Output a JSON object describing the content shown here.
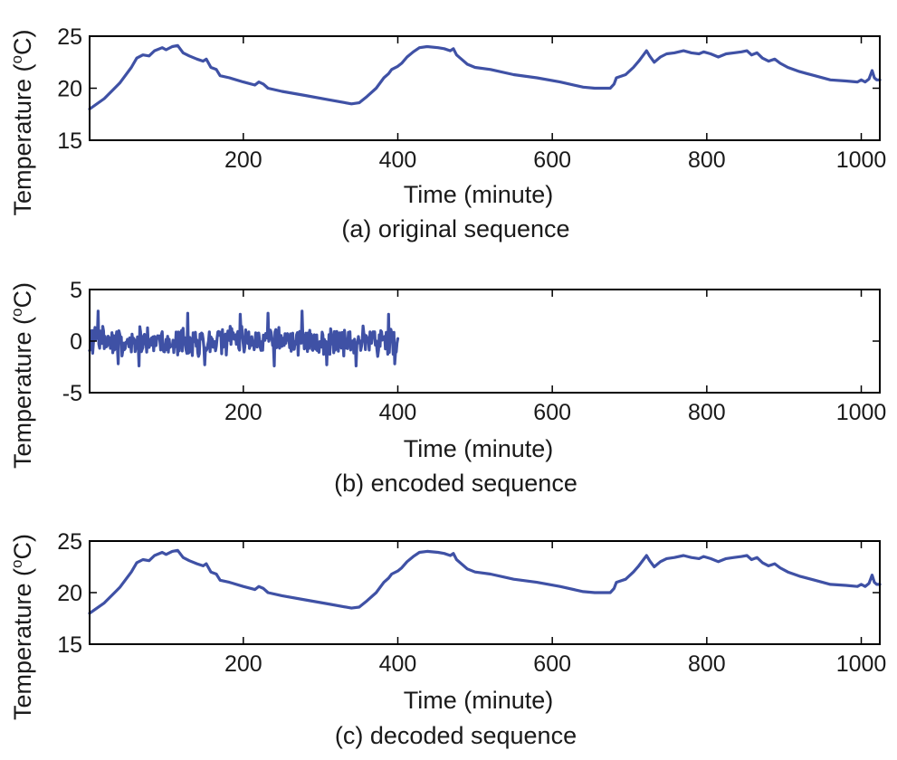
{
  "chart_data": [
    {
      "type": "line",
      "caption": "(a) original sequence",
      "xlabel": "Time (minute)",
      "ylabel": "Temperature (",
      "ylabel_sup": "o",
      "ylabel_unit": "C)",
      "xlim": [
        1,
        1024
      ],
      "ylim": [
        15,
        25
      ],
      "xticks": [
        200,
        400,
        600,
        800,
        1000
      ],
      "xtick_labels": [
        "200",
        "400",
        "600",
        "800",
        "1000"
      ],
      "yticks": [
        15,
        20,
        25
      ],
      "ytick_labels": [
        "15",
        "20",
        "25"
      ],
      "series": [
        {
          "name": "temperature",
          "color": "#3f51a5",
          "points": [
            [
              1,
              18.0
            ],
            [
              20,
              19.0
            ],
            [
              40,
              20.5
            ],
            [
              55,
              22.0
            ],
            [
              62,
              22.9
            ],
            [
              70,
              23.2
            ],
            [
              78,
              23.1
            ],
            [
              85,
              23.6
            ],
            [
              95,
              23.9
            ],
            [
              100,
              23.7
            ],
            [
              108,
              24.0
            ],
            [
              115,
              24.1
            ],
            [
              122,
              23.4
            ],
            [
              130,
              23.1
            ],
            [
              140,
              22.8
            ],
            [
              148,
              22.6
            ],
            [
              152,
              22.8
            ],
            [
              158,
              22.0
            ],
            [
              165,
              21.8
            ],
            [
              170,
              21.2
            ],
            [
              182,
              21.0
            ],
            [
              200,
              20.6
            ],
            [
              215,
              20.3
            ],
            [
              220,
              20.6
            ],
            [
              226,
              20.4
            ],
            [
              232,
              20.0
            ],
            [
              250,
              19.7
            ],
            [
              280,
              19.3
            ],
            [
              310,
              18.9
            ],
            [
              340,
              18.5
            ],
            [
              350,
              18.6
            ],
            [
              360,
              19.2
            ],
            [
              372,
              20.0
            ],
            [
              382,
              21.0
            ],
            [
              388,
              21.4
            ],
            [
              392,
              21.8
            ],
            [
              400,
              22.1
            ],
            [
              405,
              22.4
            ],
            [
              412,
              23.0
            ],
            [
              420,
              23.5
            ],
            [
              428,
              23.9
            ],
            [
              438,
              24.0
            ],
            [
              452,
              23.9
            ],
            [
              460,
              23.8
            ],
            [
              468,
              23.6
            ],
            [
              472,
              23.8
            ],
            [
              476,
              23.2
            ],
            [
              490,
              22.3
            ],
            [
              500,
              22.0
            ],
            [
              520,
              21.8
            ],
            [
              550,
              21.3
            ],
            [
              580,
              21.0
            ],
            [
              610,
              20.6
            ],
            [
              640,
              20.1
            ],
            [
              655,
              20.0
            ],
            [
              675,
              20.0
            ],
            [
              680,
              20.4
            ],
            [
              683,
              21.0
            ],
            [
              695,
              21.3
            ],
            [
              705,
              22.0
            ],
            [
              712,
              22.6
            ],
            [
              718,
              23.2
            ],
            [
              722,
              23.6
            ],
            [
              726,
              23.1
            ],
            [
              732,
              22.5
            ],
            [
              740,
              23.0
            ],
            [
              748,
              23.3
            ],
            [
              758,
              23.4
            ],
            [
              770,
              23.6
            ],
            [
              780,
              23.4
            ],
            [
              790,
              23.3
            ],
            [
              796,
              23.5
            ],
            [
              805,
              23.3
            ],
            [
              815,
              23.0
            ],
            [
              825,
              23.3
            ],
            [
              835,
              23.4
            ],
            [
              845,
              23.5
            ],
            [
              852,
              23.6
            ],
            [
              858,
              23.2
            ],
            [
              865,
              23.4
            ],
            [
              872,
              22.9
            ],
            [
              880,
              22.6
            ],
            [
              888,
              22.8
            ],
            [
              895,
              22.4
            ],
            [
              905,
              22.0
            ],
            [
              920,
              21.6
            ],
            [
              940,
              21.2
            ],
            [
              960,
              20.8
            ],
            [
              980,
              20.7
            ],
            [
              995,
              20.6
            ],
            [
              1000,
              20.8
            ],
            [
              1005,
              20.6
            ],
            [
              1010,
              20.9
            ],
            [
              1014,
              21.7
            ],
            [
              1017,
              21.0
            ],
            [
              1020,
              20.8
            ],
            [
              1024,
              20.8
            ]
          ]
        }
      ]
    },
    {
      "type": "line",
      "caption": "(b) encoded sequence",
      "xlabel": "Time (minute)",
      "ylabel": "Temperature (",
      "ylabel_sup": "o",
      "ylabel_unit": "C)",
      "xlim": [
        1,
        1024
      ],
      "ylim": [
        -5,
        5
      ],
      "xticks": [
        200,
        400,
        600,
        800,
        1000
      ],
      "xtick_labels": [
        "200",
        "400",
        "600",
        "800",
        "1000"
      ],
      "yticks": [
        -5,
        0,
        5
      ],
      "ytick_labels": [
        "-5",
        "0",
        "5"
      ],
      "series": [
        {
          "name": "encoded",
          "color": "#3f51a5",
          "noise": {
            "x_start": 1,
            "x_end": 400,
            "count": 400,
            "amplitude": 1.6,
            "spikes": [
              [
                12,
                2.9
              ],
              [
                38,
                -2.2
              ],
              [
                65,
                -2.4
              ],
              [
                128,
                2.7
              ],
              [
                150,
                -2.3
              ],
              [
                196,
                2.6
              ],
              [
                232,
                2.7
              ],
              [
                240,
                -2.4
              ],
              [
                276,
                2.9
              ],
              [
                308,
                -2.3
              ],
              [
                346,
                -2.4
              ],
              [
                388,
                2.6
              ],
              [
                396,
                -2.2
              ]
            ]
          }
        }
      ]
    },
    {
      "type": "line",
      "caption": "(c) decoded sequence",
      "xlabel": "Time (minute)",
      "ylabel": "Temperature (",
      "ylabel_sup": "o",
      "ylabel_unit": "C)",
      "xlim": [
        1,
        1024
      ],
      "ylim": [
        15,
        25
      ],
      "xticks": [
        200,
        400,
        600,
        800,
        1000
      ],
      "xtick_labels": [
        "200",
        "400",
        "600",
        "800",
        "1000"
      ],
      "yticks": [
        15,
        20,
        25
      ],
      "ytick_labels": [
        "15",
        "20",
        "25"
      ],
      "series": [
        {
          "name": "temperature",
          "color": "#3f51a5",
          "points": [
            [
              1,
              18.0
            ],
            [
              20,
              19.0
            ],
            [
              40,
              20.5
            ],
            [
              55,
              22.0
            ],
            [
              62,
              22.9
            ],
            [
              70,
              23.2
            ],
            [
              78,
              23.1
            ],
            [
              85,
              23.6
            ],
            [
              95,
              23.9
            ],
            [
              100,
              23.7
            ],
            [
              108,
              24.0
            ],
            [
              115,
              24.1
            ],
            [
              122,
              23.4
            ],
            [
              130,
              23.1
            ],
            [
              140,
              22.8
            ],
            [
              148,
              22.6
            ],
            [
              152,
              22.8
            ],
            [
              158,
              22.0
            ],
            [
              165,
              21.8
            ],
            [
              170,
              21.2
            ],
            [
              182,
              21.0
            ],
            [
              200,
              20.6
            ],
            [
              215,
              20.3
            ],
            [
              220,
              20.6
            ],
            [
              226,
              20.4
            ],
            [
              232,
              20.0
            ],
            [
              250,
              19.7
            ],
            [
              280,
              19.3
            ],
            [
              310,
              18.9
            ],
            [
              340,
              18.5
            ],
            [
              350,
              18.6
            ],
            [
              360,
              19.2
            ],
            [
              372,
              20.0
            ],
            [
              382,
              21.0
            ],
            [
              388,
              21.4
            ],
            [
              392,
              21.8
            ],
            [
              400,
              22.1
            ],
            [
              405,
              22.4
            ],
            [
              412,
              23.0
            ],
            [
              420,
              23.5
            ],
            [
              428,
              23.9
            ],
            [
              438,
              24.0
            ],
            [
              452,
              23.9
            ],
            [
              460,
              23.8
            ],
            [
              468,
              23.6
            ],
            [
              472,
              23.8
            ],
            [
              476,
              23.2
            ],
            [
              490,
              22.3
            ],
            [
              500,
              22.0
            ],
            [
              520,
              21.8
            ],
            [
              550,
              21.3
            ],
            [
              580,
              21.0
            ],
            [
              610,
              20.6
            ],
            [
              640,
              20.1
            ],
            [
              655,
              20.0
            ],
            [
              675,
              20.0
            ],
            [
              680,
              20.4
            ],
            [
              683,
              21.0
            ],
            [
              695,
              21.3
            ],
            [
              705,
              22.0
            ],
            [
              712,
              22.6
            ],
            [
              718,
              23.2
            ],
            [
              722,
              23.6
            ],
            [
              726,
              23.1
            ],
            [
              732,
              22.5
            ],
            [
              740,
              23.0
            ],
            [
              748,
              23.3
            ],
            [
              758,
              23.4
            ],
            [
              770,
              23.6
            ],
            [
              780,
              23.4
            ],
            [
              790,
              23.3
            ],
            [
              796,
              23.5
            ],
            [
              805,
              23.3
            ],
            [
              815,
              23.0
            ],
            [
              825,
              23.3
            ],
            [
              835,
              23.4
            ],
            [
              845,
              23.5
            ],
            [
              852,
              23.6
            ],
            [
              858,
              23.2
            ],
            [
              865,
              23.4
            ],
            [
              872,
              22.9
            ],
            [
              880,
              22.6
            ],
            [
              888,
              22.8
            ],
            [
              895,
              22.4
            ],
            [
              905,
              22.0
            ],
            [
              920,
              21.6
            ],
            [
              940,
              21.2
            ],
            [
              960,
              20.8
            ],
            [
              980,
              20.7
            ],
            [
              995,
              20.6
            ],
            [
              1000,
              20.8
            ],
            [
              1005,
              20.6
            ],
            [
              1010,
              20.9
            ],
            [
              1014,
              21.7
            ],
            [
              1017,
              21.0
            ],
            [
              1020,
              20.8
            ],
            [
              1024,
              20.8
            ]
          ]
        }
      ]
    }
  ]
}
